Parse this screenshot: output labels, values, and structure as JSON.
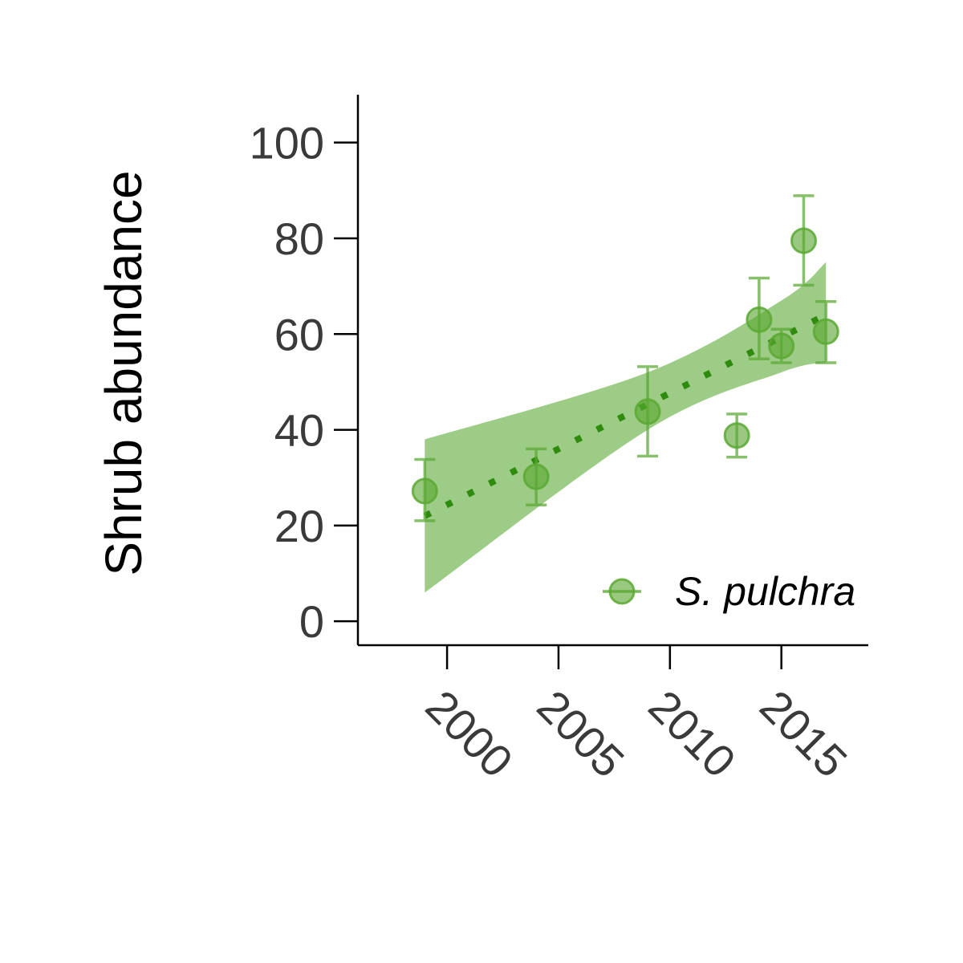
{
  "chart_data": {
    "type": "scatter",
    "title": "",
    "xlabel": "",
    "ylabel": "Shrub abundance",
    "xlim": [
      1996,
      2018.9
    ],
    "ylim": [
      -5,
      110
    ],
    "x_ticks": [
      2000,
      2005,
      2010,
      2015
    ],
    "y_ticks": [
      0,
      20,
      40,
      60,
      80,
      100
    ],
    "grid": false,
    "legend_position": "bottom-right",
    "colors": {
      "point": "#5aa832",
      "line": "#2e8b0e",
      "band": "#9ccc85",
      "axis": "#000000"
    },
    "series": [
      {
        "name": "S. pulchra",
        "points": [
          {
            "x": 1999,
            "y": 27.2,
            "lower": 21,
            "upper": 33.8
          },
          {
            "x": 2004,
            "y": 30.2,
            "lower": 24.3,
            "upper": 36
          },
          {
            "x": 2009,
            "y": 43.8,
            "lower": 34.5,
            "upper": 53.2
          },
          {
            "x": 2013,
            "y": 38.8,
            "lower": 34.3,
            "upper": 43.3
          },
          {
            "x": 2014,
            "y": 63.0,
            "lower": 54.8,
            "upper": 71.7
          },
          {
            "x": 2015,
            "y": 57.5,
            "lower": 54.0,
            "upper": 61.0
          },
          {
            "x": 2016,
            "y": 79.5,
            "lower": 70.2,
            "upper": 88.9
          },
          {
            "x": 2017,
            "y": 60.5,
            "lower": 54.0,
            "upper": 66.8
          }
        ],
        "trend": {
          "x": [
            1999,
            2017
          ],
          "y": [
            22,
            64
          ]
        },
        "confidence_band": {
          "x": [
            1999,
            2009,
            2015,
            2017
          ],
          "upper": [
            38,
            52,
            67,
            75
          ],
          "lower": [
            6,
            40,
            52,
            54
          ]
        }
      }
    ]
  }
}
